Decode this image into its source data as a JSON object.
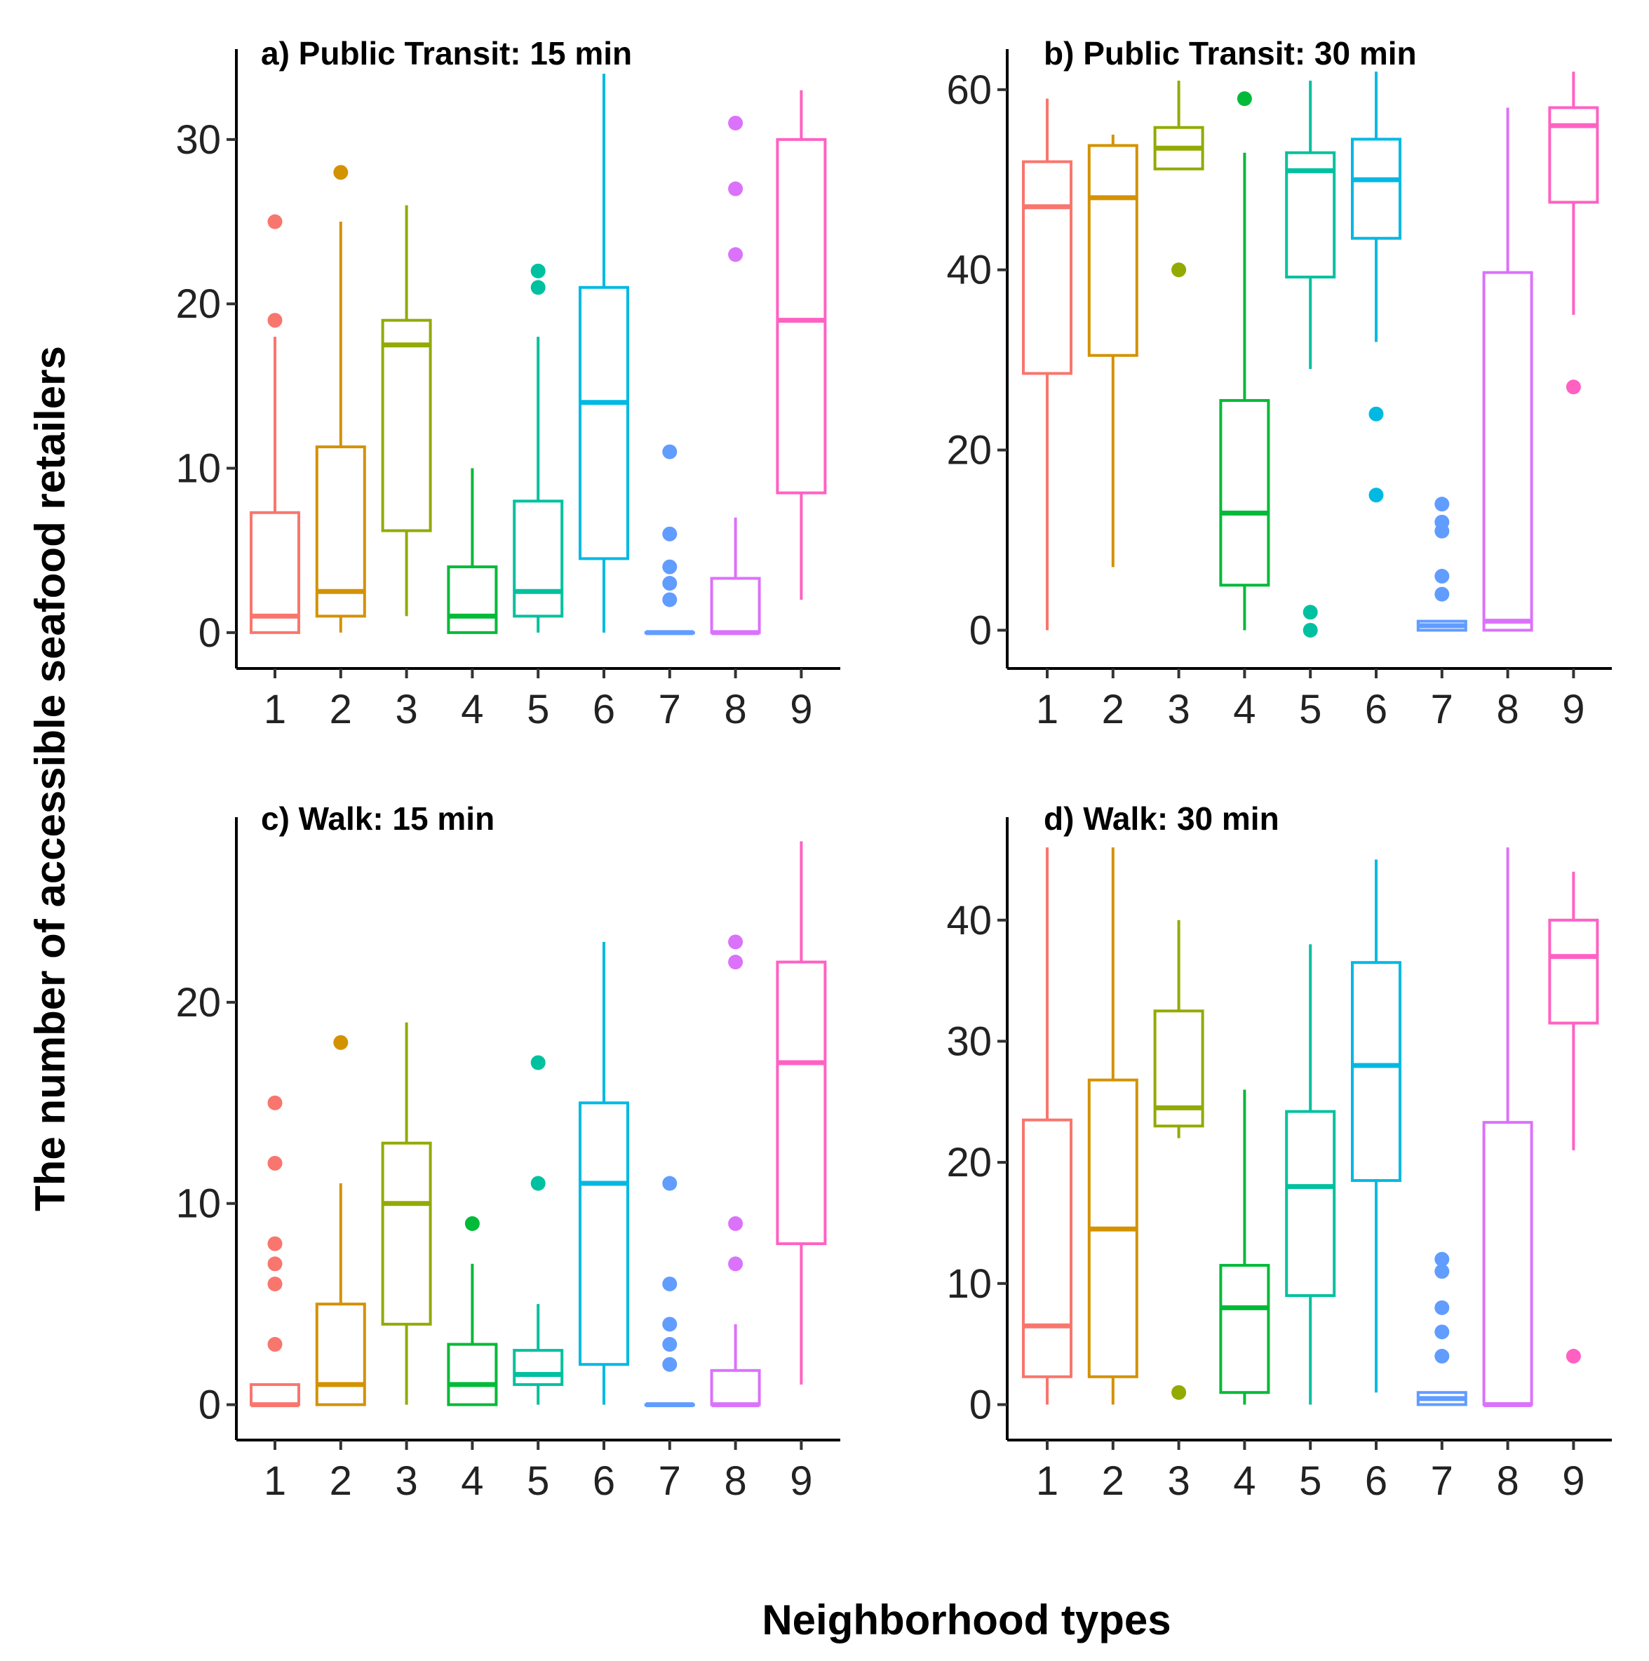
{
  "figure": {
    "ylabel": "The number of accessible seafood retailers",
    "xlabel": "Neighborhood types"
  },
  "palette": [
    "#F8766D",
    "#D39200",
    "#93AA00",
    "#00BA38",
    "#00C19F",
    "#00B9E3",
    "#619CFF",
    "#DB72FB",
    "#FF61C3"
  ],
  "chart_data": [
    {
      "type": "box",
      "title": "a) Public Transit: 15 min",
      "categories": [
        "1",
        "2",
        "3",
        "4",
        "5",
        "6",
        "7",
        "8",
        "9"
      ],
      "ylim": [
        -1.5,
        35.5
      ],
      "yticks": [
        0,
        10,
        20,
        30
      ],
      "ytick_labels": [
        "0",
        "10",
        "20",
        "30"
      ],
      "boxes": [
        {
          "q1": 0,
          "median": 1,
          "q3": 7.3,
          "whisker_low": 0,
          "whisker_high": 18,
          "outliers": [
            19,
            25
          ]
        },
        {
          "q1": 1,
          "median": 2.5,
          "q3": 11.3,
          "whisker_low": 0,
          "whisker_high": 25,
          "outliers": [
            28
          ]
        },
        {
          "q1": 6.2,
          "median": 17.5,
          "q3": 19,
          "whisker_low": 1,
          "whisker_high": 26,
          "outliers": []
        },
        {
          "q1": 0,
          "median": 1,
          "q3": 4,
          "whisker_low": 0,
          "whisker_high": 10,
          "outliers": []
        },
        {
          "q1": 1,
          "median": 2.5,
          "q3": 8,
          "whisker_low": 0,
          "whisker_high": 18,
          "outliers": [
            21,
            22
          ]
        },
        {
          "q1": 4.5,
          "median": 14,
          "q3": 21,
          "whisker_low": 0,
          "whisker_high": 34,
          "outliers": []
        },
        {
          "q1": 0,
          "median": 0,
          "q3": 0,
          "whisker_low": 0,
          "whisker_high": 0,
          "outliers": [
            2,
            3,
            4,
            6,
            11
          ]
        },
        {
          "q1": 0,
          "median": 0,
          "q3": 3.3,
          "whisker_low": 0,
          "whisker_high": 7,
          "outliers": [
            23,
            27,
            31
          ]
        },
        {
          "q1": 8.5,
          "median": 19,
          "q3": 30,
          "whisker_low": 2,
          "whisker_high": 33,
          "outliers": []
        }
      ]
    },
    {
      "type": "box",
      "title": "b) Public Transit: 30 min",
      "categories": [
        "1",
        "2",
        "3",
        "4",
        "5",
        "6",
        "7",
        "8",
        "9"
      ],
      "ylim": [
        -3,
        64.5
      ],
      "yticks": [
        0,
        20,
        40,
        60
      ],
      "ytick_labels": [
        "0",
        "20",
        "40",
        "60"
      ],
      "boxes": [
        {
          "q1": 28.5,
          "median": 47,
          "q3": 52,
          "whisker_low": 0,
          "whisker_high": 59,
          "outliers": []
        },
        {
          "q1": 30.5,
          "median": 48,
          "q3": 53.8,
          "whisker_low": 7,
          "whisker_high": 55,
          "outliers": []
        },
        {
          "q1": 51.2,
          "median": 53.5,
          "q3": 55.8,
          "whisker_low": 51.2,
          "whisker_high": 61,
          "outliers": [
            40
          ]
        },
        {
          "q1": 5,
          "median": 13,
          "q3": 25.5,
          "whisker_low": 0,
          "whisker_high": 53,
          "outliers": [
            59
          ]
        },
        {
          "q1": 39.2,
          "median": 51,
          "q3": 53,
          "whisker_low": 29,
          "whisker_high": 61,
          "outliers": [
            0,
            2
          ]
        },
        {
          "q1": 43.5,
          "median": 50,
          "q3": 54.5,
          "whisker_low": 32,
          "whisker_high": 62,
          "outliers": [
            15,
            24
          ]
        },
        {
          "q1": 0,
          "median": 0.5,
          "q3": 1,
          "whisker_low": 0,
          "whisker_high": 1,
          "outliers": [
            4,
            6,
            11,
            12,
            14
          ]
        },
        {
          "q1": 0,
          "median": 1,
          "q3": 39.7,
          "whisker_low": 0,
          "whisker_high": 58,
          "outliers": []
        },
        {
          "q1": 47.5,
          "median": 56,
          "q3": 58,
          "whisker_low": 35,
          "whisker_high": 62,
          "outliers": [
            27
          ]
        }
      ]
    },
    {
      "type": "box",
      "title": "c) Walk: 15 min",
      "categories": [
        "1",
        "2",
        "3",
        "4",
        "5",
        "6",
        "7",
        "8",
        "9"
      ],
      "ylim": [
        -1.2,
        29.2
      ],
      "yticks": [
        0,
        10,
        20
      ],
      "ytick_labels": [
        "0",
        "10",
        "20"
      ],
      "boxes": [
        {
          "q1": 0,
          "median": 0,
          "q3": 1,
          "whisker_low": 0,
          "whisker_high": 1,
          "outliers": [
            3,
            6,
            7,
            8,
            12,
            15
          ]
        },
        {
          "q1": 0,
          "median": 1,
          "q3": 5,
          "whisker_low": 0,
          "whisker_high": 11,
          "outliers": [
            18
          ]
        },
        {
          "q1": 4,
          "median": 10,
          "q3": 13,
          "whisker_low": 0,
          "whisker_high": 19,
          "outliers": []
        },
        {
          "q1": 0,
          "median": 1,
          "q3": 3,
          "whisker_low": 0,
          "whisker_high": 7,
          "outliers": [
            9
          ]
        },
        {
          "q1": 1,
          "median": 1.5,
          "q3": 2.7,
          "whisker_low": 0,
          "whisker_high": 5,
          "outliers": [
            11,
            17
          ]
        },
        {
          "q1": 2,
          "median": 11,
          "q3": 15,
          "whisker_low": 0,
          "whisker_high": 23,
          "outliers": []
        },
        {
          "q1": 0,
          "median": 0,
          "q3": 0,
          "whisker_low": 0,
          "whisker_high": 0,
          "outliers": [
            2,
            3,
            4,
            6,
            11
          ]
        },
        {
          "q1": 0,
          "median": 0,
          "q3": 1.7,
          "whisker_low": 0,
          "whisker_high": 4,
          "outliers": [
            7,
            9,
            22,
            23
          ]
        },
        {
          "q1": 8,
          "median": 17,
          "q3": 22,
          "whisker_low": 1,
          "whisker_high": 28,
          "outliers": []
        }
      ]
    },
    {
      "type": "box",
      "title": "d) Walk: 30 min",
      "categories": [
        "1",
        "2",
        "3",
        "4",
        "5",
        "6",
        "7",
        "8",
        "9"
      ],
      "ylim": [
        -2,
        48.5
      ],
      "yticks": [
        0,
        10,
        20,
        30,
        40
      ],
      "ytick_labels": [
        "0",
        "10",
        "20",
        "30",
        "40"
      ],
      "boxes": [
        {
          "q1": 2.3,
          "median": 6.5,
          "q3": 23.5,
          "whisker_low": 0,
          "whisker_high": 46,
          "outliers": []
        },
        {
          "q1": 2.3,
          "median": 14.5,
          "q3": 26.8,
          "whisker_low": 0,
          "whisker_high": 46,
          "outliers": []
        },
        {
          "q1": 23,
          "median": 24.5,
          "q3": 32.5,
          "whisker_low": 22,
          "whisker_high": 40,
          "outliers": [
            1
          ]
        },
        {
          "q1": 1,
          "median": 8,
          "q3": 11.5,
          "whisker_low": 0,
          "whisker_high": 26,
          "outliers": []
        },
        {
          "q1": 9,
          "median": 18,
          "q3": 24.2,
          "whisker_low": 0,
          "whisker_high": 38,
          "outliers": []
        },
        {
          "q1": 18.5,
          "median": 28,
          "q3": 36.5,
          "whisker_low": 1,
          "whisker_high": 45,
          "outliers": []
        },
        {
          "q1": 0,
          "median": 0.5,
          "q3": 1,
          "whisker_low": 0,
          "whisker_high": 1,
          "outliers": [
            4,
            6,
            8,
            11,
            12
          ]
        },
        {
          "q1": 0,
          "median": 0,
          "q3": 23.3,
          "whisker_low": 0,
          "whisker_high": 46,
          "outliers": []
        },
        {
          "q1": 31.5,
          "median": 37,
          "q3": 40,
          "whisker_low": 21,
          "whisker_high": 44,
          "outliers": [
            4
          ]
        }
      ]
    }
  ]
}
